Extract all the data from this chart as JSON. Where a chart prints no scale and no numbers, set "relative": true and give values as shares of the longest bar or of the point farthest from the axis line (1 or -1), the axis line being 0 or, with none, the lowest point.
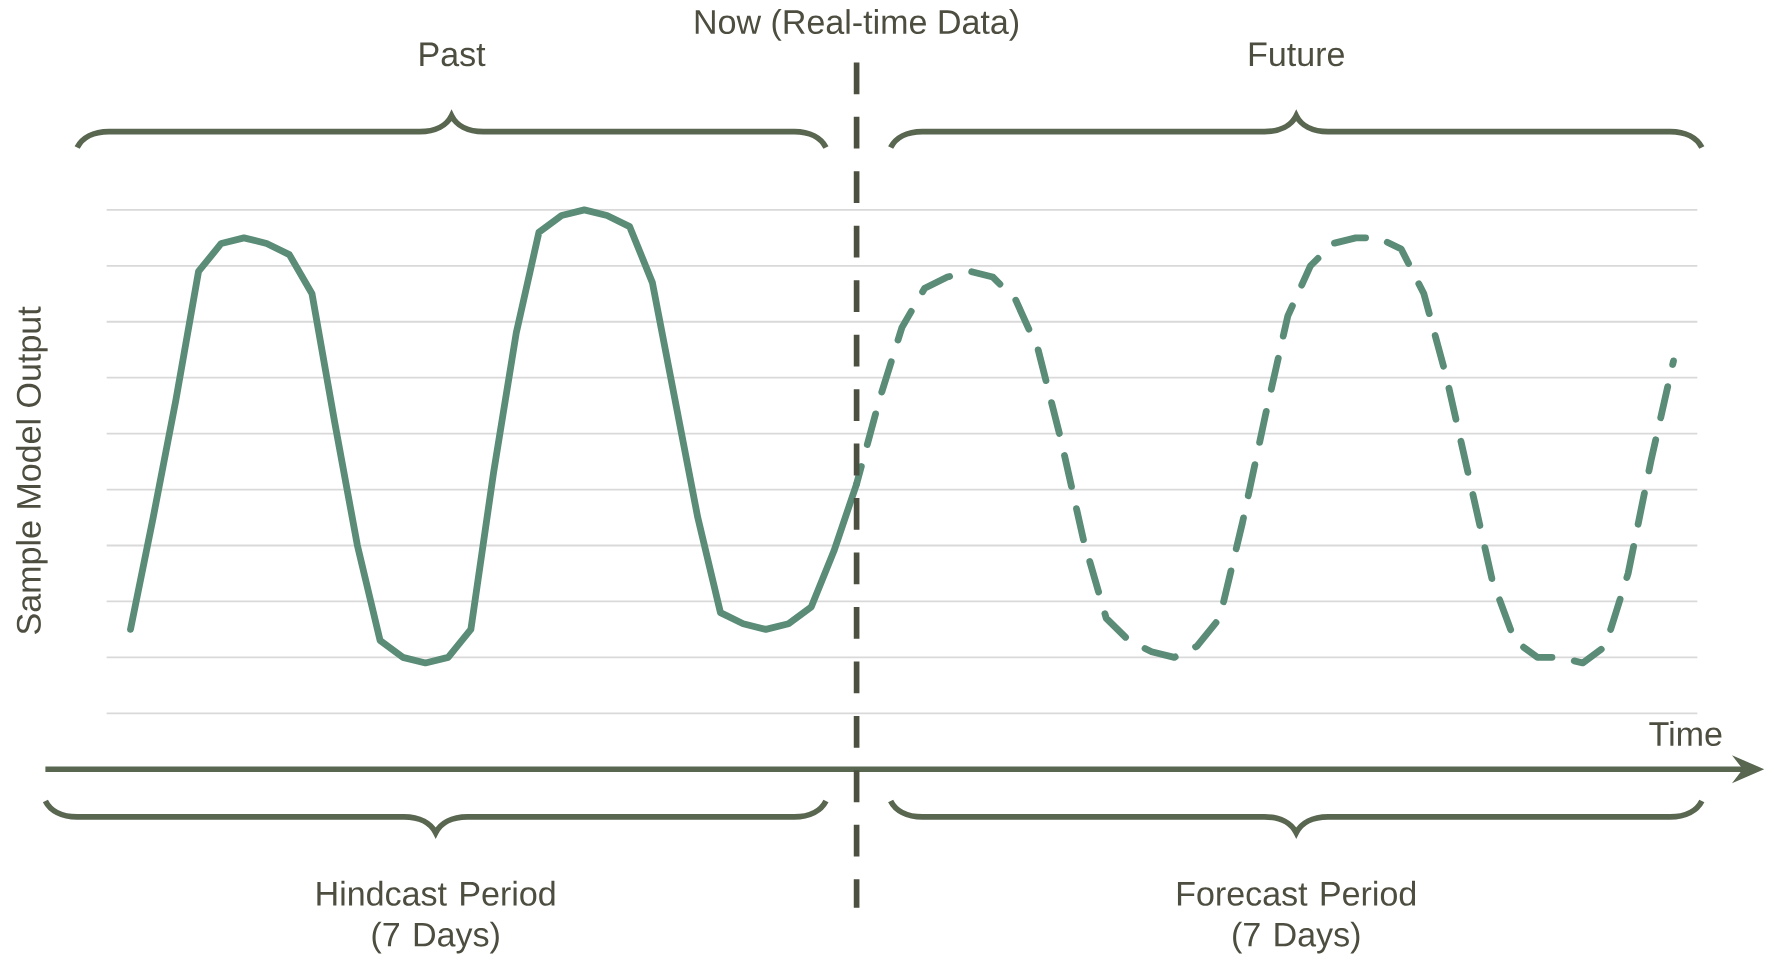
{
  "chart_data": {
    "type": "line",
    "xlabel": "Time",
    "ylabel": "Sample Model Output",
    "relative": true,
    "grid": "y",
    "categories": [
      null,
      null,
      null,
      null,
      null,
      null,
      null,
      null,
      null,
      null,
      null,
      null,
      null,
      null,
      null,
      null,
      null,
      null,
      null,
      null,
      null,
      null,
      null,
      null,
      null,
      null,
      null,
      null,
      null,
      null,
      null,
      null,
      null,
      null,
      null,
      null,
      null,
      null,
      null,
      null,
      null,
      null,
      null,
      null,
      null,
      null,
      null,
      null,
      null,
      null,
      null,
      null,
      null,
      null,
      null,
      null,
      null,
      null,
      null,
      null,
      null,
      null,
      null,
      null,
      null,
      null,
      null,
      null,
      null
    ],
    "series": [
      {
        "color": "#5a8c78",
        "line_style": "solid",
        "values": [
          0.25,
          0.45,
          0.66,
          0.89,
          0.94,
          0.95,
          0.94,
          0.92,
          0.85,
          0.62,
          0.4,
          0.23,
          0.2,
          0.19,
          0.2,
          0.25,
          0.53,
          0.78,
          0.96,
          0.99,
          1,
          0.99,
          0.97,
          0.87,
          0.66,
          0.45,
          0.28,
          0.26,
          0.25,
          0.26,
          0.29,
          0.39,
          0.51,
          null,
          null,
          null,
          null,
          null,
          null,
          null,
          null,
          null,
          null,
          null,
          null,
          null,
          null,
          null,
          null,
          null,
          null,
          null,
          null,
          null,
          null,
          null,
          null,
          null,
          null,
          null,
          null,
          null,
          null,
          null,
          null,
          null,
          null,
          null,
          null
        ]
      },
      {
        "color": "#5a8c78",
        "line_style": "dashed",
        "values": [
          null,
          null,
          null,
          null,
          null,
          null,
          null,
          null,
          null,
          null,
          null,
          null,
          null,
          null,
          null,
          null,
          null,
          null,
          null,
          null,
          null,
          null,
          null,
          null,
          null,
          null,
          null,
          null,
          null,
          null,
          null,
          null,
          0.51,
          0.66,
          0.79,
          0.86,
          0.88,
          0.89,
          0.88,
          0.84,
          0.75,
          0.59,
          0.41,
          0.27,
          0.23,
          0.21,
          0.2,
          0.22,
          0.27,
          0.44,
          0.63,
          0.81,
          0.9,
          0.94,
          0.95,
          0.95,
          0.93,
          0.85,
          0.7,
          0.52,
          0.34,
          0.23,
          0.2,
          0.2,
          0.19,
          0.22,
          0.35,
          0.55,
          0.73
        ]
      }
    ],
    "annotations": [
      "Now (Real-time Data)",
      "Past",
      "Future",
      "Hindcast Period (7 Days)",
      "Forecast Period (7 Days)"
    ]
  }
}
